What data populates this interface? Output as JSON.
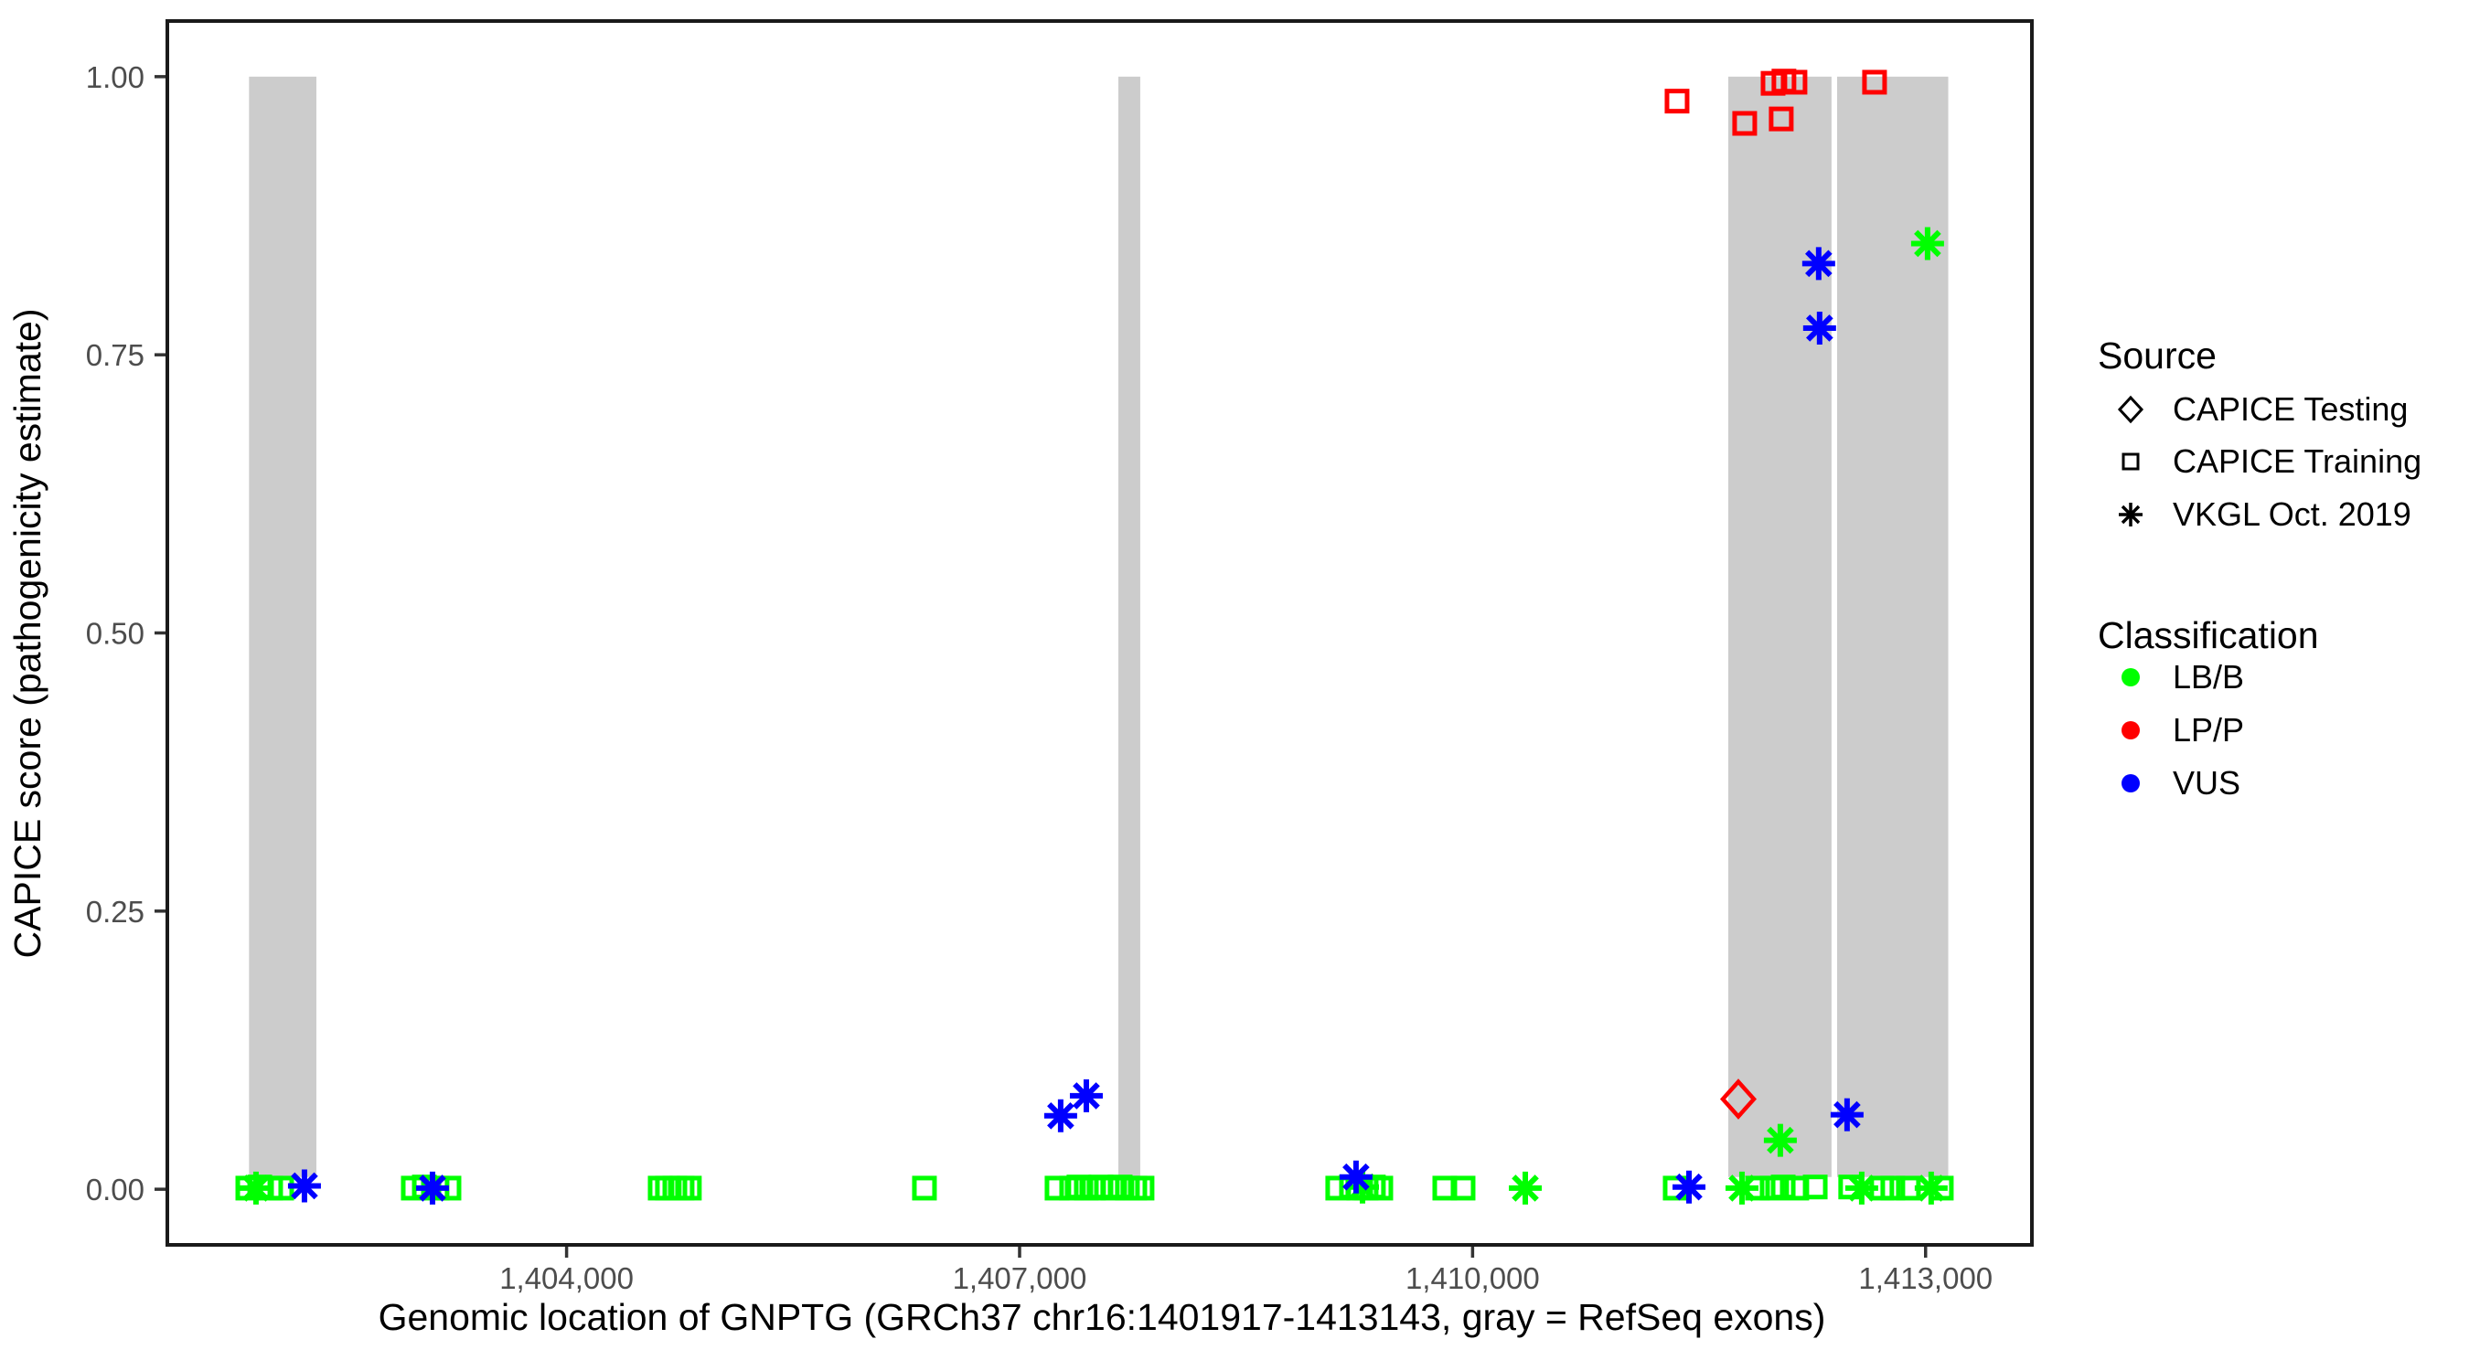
{
  "chart_data": {
    "type": "scatter",
    "xlabel": "Genomic location of GNPTG (GRCh37 chr16:1401917-1413143, gray = RefSeq exons)",
    "ylabel": "CAPICE score (pathogenicity estimate)",
    "x_domain": [
      1401356,
      1413704
    ],
    "y_domain": [
      -0.05,
      1.05
    ],
    "x_ticks": [
      {
        "value": 1404000,
        "label": "1,404,000"
      },
      {
        "value": 1407000,
        "label": "1,407,000"
      },
      {
        "value": 1410000,
        "label": "1,410,000"
      },
      {
        "value": 1413000,
        "label": "1,413,000"
      }
    ],
    "y_ticks": [
      {
        "value": 0.0,
        "label": "0.00"
      },
      {
        "value": 0.25,
        "label": "0.25"
      },
      {
        "value": 0.5,
        "label": "0.50"
      },
      {
        "value": 0.75,
        "label": "0.75"
      },
      {
        "value": 1.0,
        "label": "1.00"
      }
    ],
    "grid": "off",
    "legend_position": "right",
    "exon_color": "#cccccc",
    "exon_y_span": [
      0.011,
      1.0
    ],
    "exons": [
      {
        "start": 1401897,
        "end": 1402343
      },
      {
        "start": 1407654,
        "end": 1407799
      },
      {
        "start": 1411693,
        "end": 1412377
      },
      {
        "start": 1412414,
        "end": 1413150
      }
    ],
    "marker_by_source": {
      "testing": "diamond",
      "training": "square",
      "vkgl": "asterisk"
    },
    "class_colors": {
      "LB/B": "#00ff00",
      "LP/P": "#ff0000",
      "VUS": "#0000ff"
    },
    "points": [
      {
        "g": 1401889,
        "v": 0.001,
        "source": "training",
        "cls": "LB/B"
      },
      {
        "g": 1401968,
        "v": 0.002,
        "source": "training",
        "cls": "LB/B"
      },
      {
        "g": 1402040,
        "v": 0.001,
        "source": "training",
        "cls": "LB/B"
      },
      {
        "g": 1402113,
        "v": 0.001,
        "source": "training",
        "cls": "LB/B"
      },
      {
        "g": 1401943,
        "v": 0.001,
        "source": "vkgl",
        "cls": "LB/B"
      },
      {
        "g": 1402264,
        "v": 0.003,
        "source": "vkgl",
        "cls": "VUS"
      },
      {
        "g": 1402985,
        "v": 0.001,
        "source": "training",
        "cls": "LB/B"
      },
      {
        "g": 1403058,
        "v": 0.002,
        "source": "training",
        "cls": "LB/B"
      },
      {
        "g": 1403142,
        "v": 0.001,
        "source": "training",
        "cls": "LB/B"
      },
      {
        "g": 1403221,
        "v": 0.001,
        "source": "training",
        "cls": "LB/B"
      },
      {
        "g": 1403112,
        "v": 0.001,
        "source": "vkgl",
        "cls": "VUS"
      },
      {
        "g": 1404620,
        "v": 0.001,
        "source": "training",
        "cls": "LB/B"
      },
      {
        "g": 1404668,
        "v": 0.001,
        "source": "training",
        "cls": "LB/B"
      },
      {
        "g": 1404717,
        "v": 0.001,
        "source": "training",
        "cls": "LB/B"
      },
      {
        "g": 1404765,
        "v": 0.001,
        "source": "training",
        "cls": "LB/B"
      },
      {
        "g": 1404813,
        "v": 0.001,
        "source": "training",
        "cls": "LB/B"
      },
      {
        "g": 1406370,
        "v": 0.001,
        "source": "training",
        "cls": "LB/B"
      },
      {
        "g": 1407248,
        "v": 0.001,
        "source": "training",
        "cls": "LB/B"
      },
      {
        "g": 1407345,
        "v": 0.001,
        "source": "training",
        "cls": "LB/B"
      },
      {
        "g": 1407393,
        "v": 0.002,
        "source": "training",
        "cls": "LB/B"
      },
      {
        "g": 1407442,
        "v": 0.001,
        "source": "training",
        "cls": "LB/B"
      },
      {
        "g": 1407490,
        "v": 0.001,
        "source": "training",
        "cls": "LB/B"
      },
      {
        "g": 1407539,
        "v": 0.002,
        "source": "training",
        "cls": "LB/B"
      },
      {
        "g": 1407617,
        "v": 0.001,
        "source": "training",
        "cls": "LB/B"
      },
      {
        "g": 1407666,
        "v": 0.002,
        "source": "training",
        "cls": "LB/B"
      },
      {
        "g": 1407714,
        "v": 0.001,
        "source": "training",
        "cls": "LB/B"
      },
      {
        "g": 1407763,
        "v": 0.001,
        "source": "training",
        "cls": "LB/B"
      },
      {
        "g": 1407811,
        "v": 0.001,
        "source": "training",
        "cls": "LB/B"
      },
      {
        "g": 1407272,
        "v": 0.066,
        "source": "vkgl",
        "cls": "VUS"
      },
      {
        "g": 1407442,
        "v": 0.084,
        "source": "vkgl",
        "cls": "VUS"
      },
      {
        "g": 1409107,
        "v": 0.001,
        "source": "training",
        "cls": "LB/B"
      },
      {
        "g": 1409198,
        "v": 0.002,
        "source": "training",
        "cls": "LB/B"
      },
      {
        "g": 1409246,
        "v": 0.001,
        "source": "training",
        "cls": "LB/B"
      },
      {
        "g": 1409295,
        "v": 0.001,
        "source": "training",
        "cls": "LB/B"
      },
      {
        "g": 1409343,
        "v": 0.002,
        "source": "training",
        "cls": "LB/B"
      },
      {
        "g": 1409392,
        "v": 0.001,
        "source": "training",
        "cls": "LB/B"
      },
      {
        "g": 1409271,
        "v": 0.002,
        "source": "vkgl",
        "cls": "LB/B"
      },
      {
        "g": 1409228,
        "v": 0.011,
        "source": "vkgl",
        "cls": "VUS"
      },
      {
        "g": 1409816,
        "v": 0.001,
        "source": "training",
        "cls": "LB/B"
      },
      {
        "g": 1409937,
        "v": 0.001,
        "source": "training",
        "cls": "LB/B"
      },
      {
        "g": 1410349,
        "v": 0.001,
        "source": "vkgl",
        "cls": "LB/B"
      },
      {
        "g": 1411342,
        "v": 0.001,
        "source": "training",
        "cls": "LB/B"
      },
      {
        "g": 1411433,
        "v": 0.002,
        "source": "vkgl",
        "cls": "VUS"
      },
      {
        "g": 1411887,
        "v": 0.001,
        "source": "training",
        "cls": "LB/B"
      },
      {
        "g": 1411984,
        "v": 0.001,
        "source": "training",
        "cls": "LB/B"
      },
      {
        "g": 1412057,
        "v": 0.002,
        "source": "training",
        "cls": "LB/B"
      },
      {
        "g": 1412147,
        "v": 0.001,
        "source": "training",
        "cls": "LB/B"
      },
      {
        "g": 1412269,
        "v": 0.002,
        "source": "training",
        "cls": "LB/B"
      },
      {
        "g": 1411784,
        "v": 0.001,
        "source": "vkgl",
        "cls": "LB/B"
      },
      {
        "g": 1412504,
        "v": 0.002,
        "source": "training",
        "cls": "LB/B"
      },
      {
        "g": 1412710,
        "v": 0.001,
        "source": "training",
        "cls": "LB/B"
      },
      {
        "g": 1412783,
        "v": 0.001,
        "source": "training",
        "cls": "LB/B"
      },
      {
        "g": 1412886,
        "v": 0.001,
        "source": "training",
        "cls": "LB/B"
      },
      {
        "g": 1413104,
        "v": 0.001,
        "source": "training",
        "cls": "LB/B"
      },
      {
        "g": 1412577,
        "v": 0.001,
        "source": "vkgl",
        "cls": "LB/B"
      },
      {
        "g": 1413037,
        "v": 0.001,
        "source": "vkgl",
        "cls": "LB/B"
      },
      {
        "g": 1411354,
        "v": 0.978,
        "source": "training",
        "cls": "LP/P"
      },
      {
        "g": 1411802,
        "v": 0.958,
        "source": "training",
        "cls": "LP/P"
      },
      {
        "g": 1412044,
        "v": 0.962,
        "source": "training",
        "cls": "LP/P"
      },
      {
        "g": 1411990,
        "v": 0.994,
        "source": "training",
        "cls": "LP/P"
      },
      {
        "g": 1412062,
        "v": 0.996,
        "source": "training",
        "cls": "LP/P"
      },
      {
        "g": 1412135,
        "v": 0.995,
        "source": "training",
        "cls": "LP/P"
      },
      {
        "g": 1412662,
        "v": 0.995,
        "source": "training",
        "cls": "LP/P"
      },
      {
        "g": 1411760,
        "v": 0.081,
        "source": "testing",
        "cls": "LP/P"
      },
      {
        "g": 1412038,
        "v": 0.044,
        "source": "vkgl",
        "cls": "LB/B"
      },
      {
        "g": 1412480,
        "v": 0.067,
        "source": "vkgl",
        "cls": "VUS"
      },
      {
        "g": 1412292,
        "v": 0.832,
        "source": "vkgl",
        "cls": "VUS"
      },
      {
        "g": 1412298,
        "v": 0.774,
        "source": "vkgl",
        "cls": "VUS"
      },
      {
        "g": 1413013,
        "v": 0.85,
        "source": "vkgl",
        "cls": "LB/B"
      }
    ]
  },
  "legend": {
    "source": {
      "title": "Source",
      "items": [
        {
          "label": "CAPICE Testing",
          "marker": "diamond"
        },
        {
          "label": "CAPICE Training",
          "marker": "square"
        },
        {
          "label": "VKGL Oct. 2019",
          "marker": "asterisk"
        }
      ]
    },
    "classification": {
      "title": "Classification",
      "items": [
        {
          "label": "LB/B",
          "color": "#00ff00"
        },
        {
          "label": "LP/P",
          "color": "#ff0000"
        },
        {
          "label": "VUS",
          "color": "#0000ff"
        }
      ]
    }
  }
}
